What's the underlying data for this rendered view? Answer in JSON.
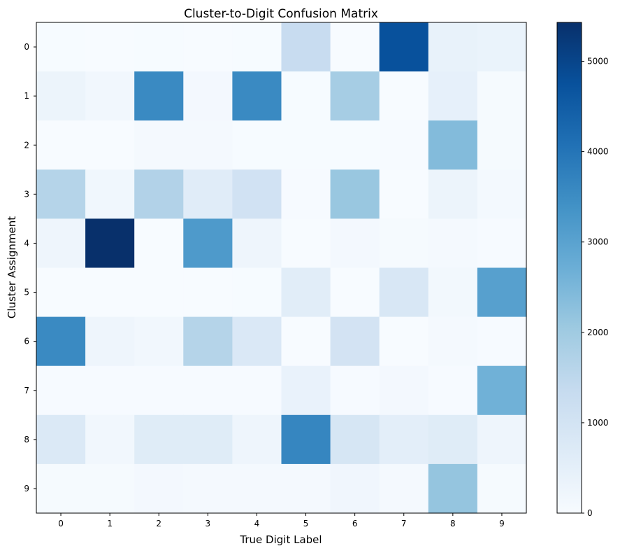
{
  "chart_data": {
    "type": "heatmap",
    "title": "Cluster-to-Digit Confusion Matrix",
    "xlabel": "True Digit Label",
    "ylabel": "Cluster Assignment",
    "x_categories": [
      "0",
      "1",
      "2",
      "3",
      "4",
      "5",
      "6",
      "7",
      "8",
      "9"
    ],
    "y_categories": [
      "0",
      "1",
      "2",
      "3",
      "4",
      "5",
      "6",
      "7",
      "8",
      "9"
    ],
    "values": [
      [
        20,
        10,
        15,
        10,
        15,
        1300,
        10,
        4750,
        400,
        350
      ],
      [
        300,
        150,
        3550,
        120,
        3550,
        20,
        1900,
        5,
        450,
        60
      ],
      [
        10,
        10,
        70,
        70,
        20,
        20,
        20,
        40,
        2400,
        50
      ],
      [
        1650,
        180,
        1700,
        620,
        1050,
        40,
        2100,
        5,
        300,
        100
      ],
      [
        250,
        5430,
        5,
        3200,
        250,
        10,
        120,
        60,
        70,
        40
      ],
      [
        10,
        5,
        10,
        10,
        15,
        600,
        10,
        850,
        130,
        3050
      ],
      [
        3550,
        250,
        150,
        1650,
        800,
        10,
        1000,
        5,
        80,
        30
      ],
      [
        30,
        30,
        30,
        30,
        30,
        380,
        40,
        110,
        30,
        2650
      ],
      [
        750,
        150,
        650,
        650,
        250,
        3650,
        900,
        550,
        650,
        250
      ],
      [
        60,
        60,
        120,
        90,
        80,
        80,
        200,
        80,
        2150,
        60
      ]
    ],
    "colorscale": "Blues",
    "colorbar": {
      "min": 0,
      "max": 5430,
      "ticks": [
        0,
        1000,
        2000,
        3000,
        4000,
        5000
      ]
    }
  }
}
